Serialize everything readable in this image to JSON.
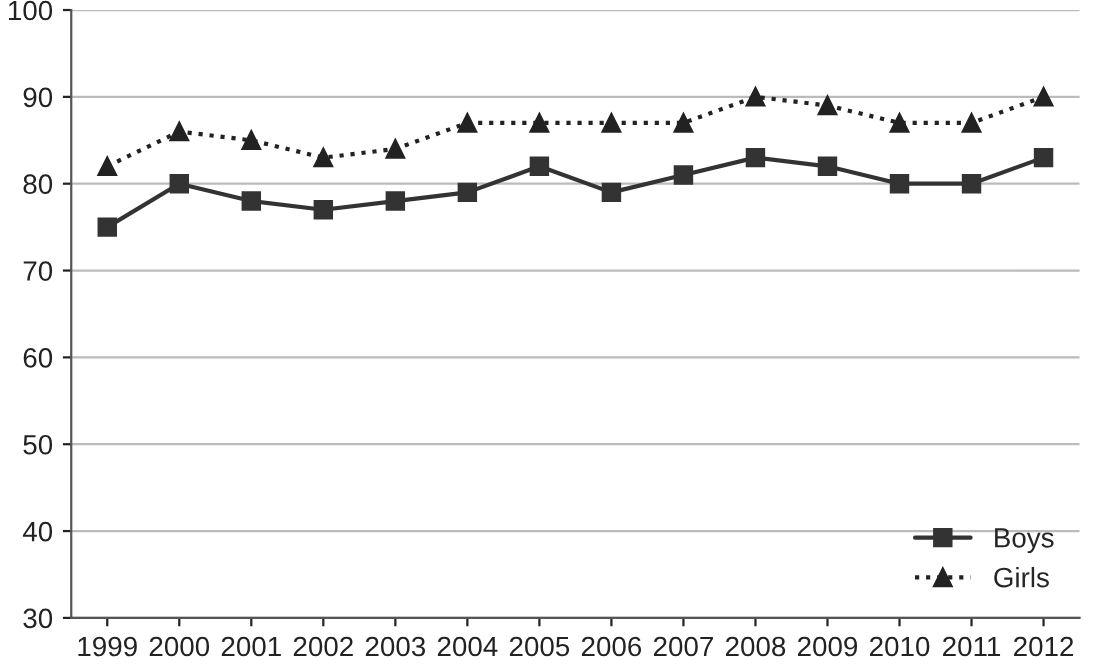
{
  "chart_data": {
    "type": "line",
    "categories": [
      "1999",
      "2000",
      "2001",
      "2002",
      "2003",
      "2004",
      "2005",
      "2006",
      "2007",
      "2008",
      "2009",
      "2010",
      "2011",
      "2012"
    ],
    "series": [
      {
        "name": "Boys",
        "color": "#333333",
        "marker": "square",
        "line_style": "solid",
        "values": [
          75,
          80,
          78,
          77,
          78,
          79,
          82,
          79,
          81,
          83,
          82,
          80,
          80,
          83
        ]
      },
      {
        "name": "Girls",
        "color": "#222222",
        "marker": "triangle",
        "line_style": "dotted",
        "values": [
          82,
          86,
          85,
          83,
          84,
          87,
          87,
          87,
          87,
          90,
          89,
          87,
          87,
          90
        ]
      }
    ],
    "ylim": [
      30,
      100
    ],
    "yticks": [
      30,
      40,
      50,
      60,
      70,
      80,
      90,
      100
    ],
    "grid": "y",
    "legend": "bottom right"
  }
}
